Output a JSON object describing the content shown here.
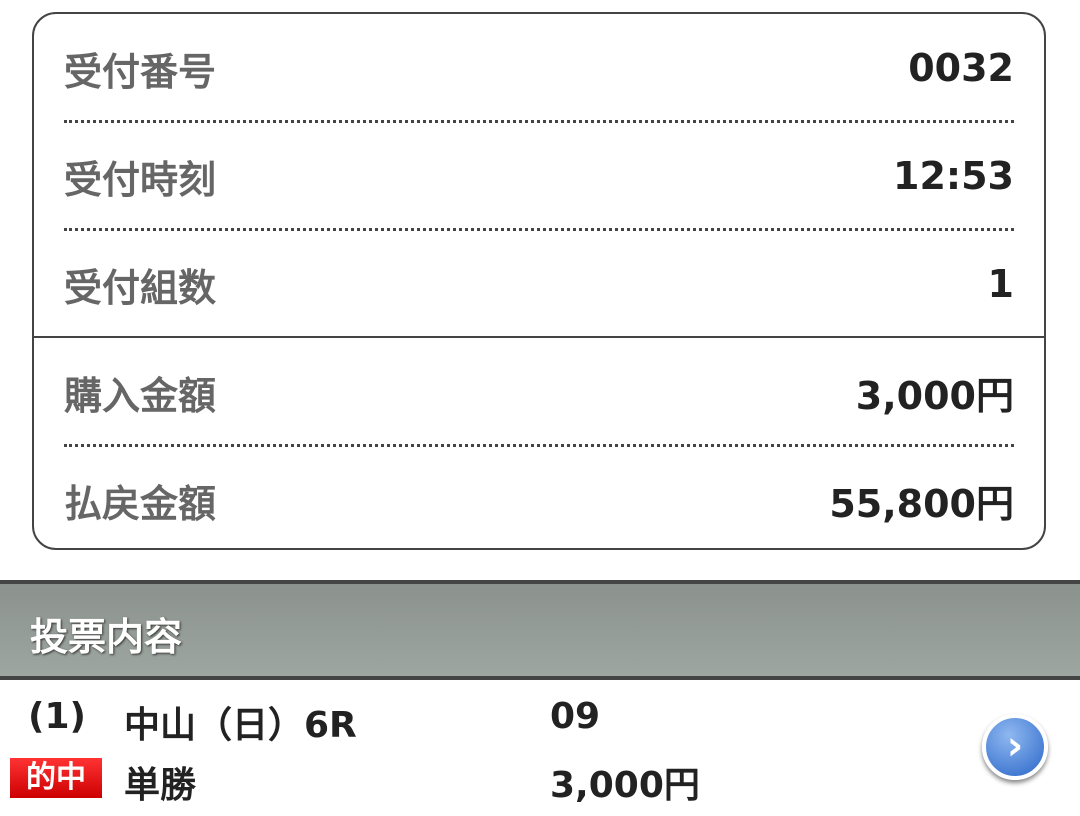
{
  "summary": [
    {
      "label": "受付番号",
      "value": "0032"
    },
    {
      "label": "受付時刻",
      "value": "12:53"
    },
    {
      "label": "受付組数",
      "value": "1"
    },
    {
      "label": "購入金額",
      "value": "3,000円"
    },
    {
      "label": "払戻金額",
      "value": "55,800円"
    }
  ],
  "section": {
    "title": "投票内容"
  },
  "bet": {
    "index": "(1)",
    "race": "中山（日）6R",
    "horse": "09",
    "badge": "的中",
    "type": "単勝",
    "amount": "3,000円",
    "detail_icon": "chevron-right-icon",
    "badge_color": "#e00000"
  }
}
